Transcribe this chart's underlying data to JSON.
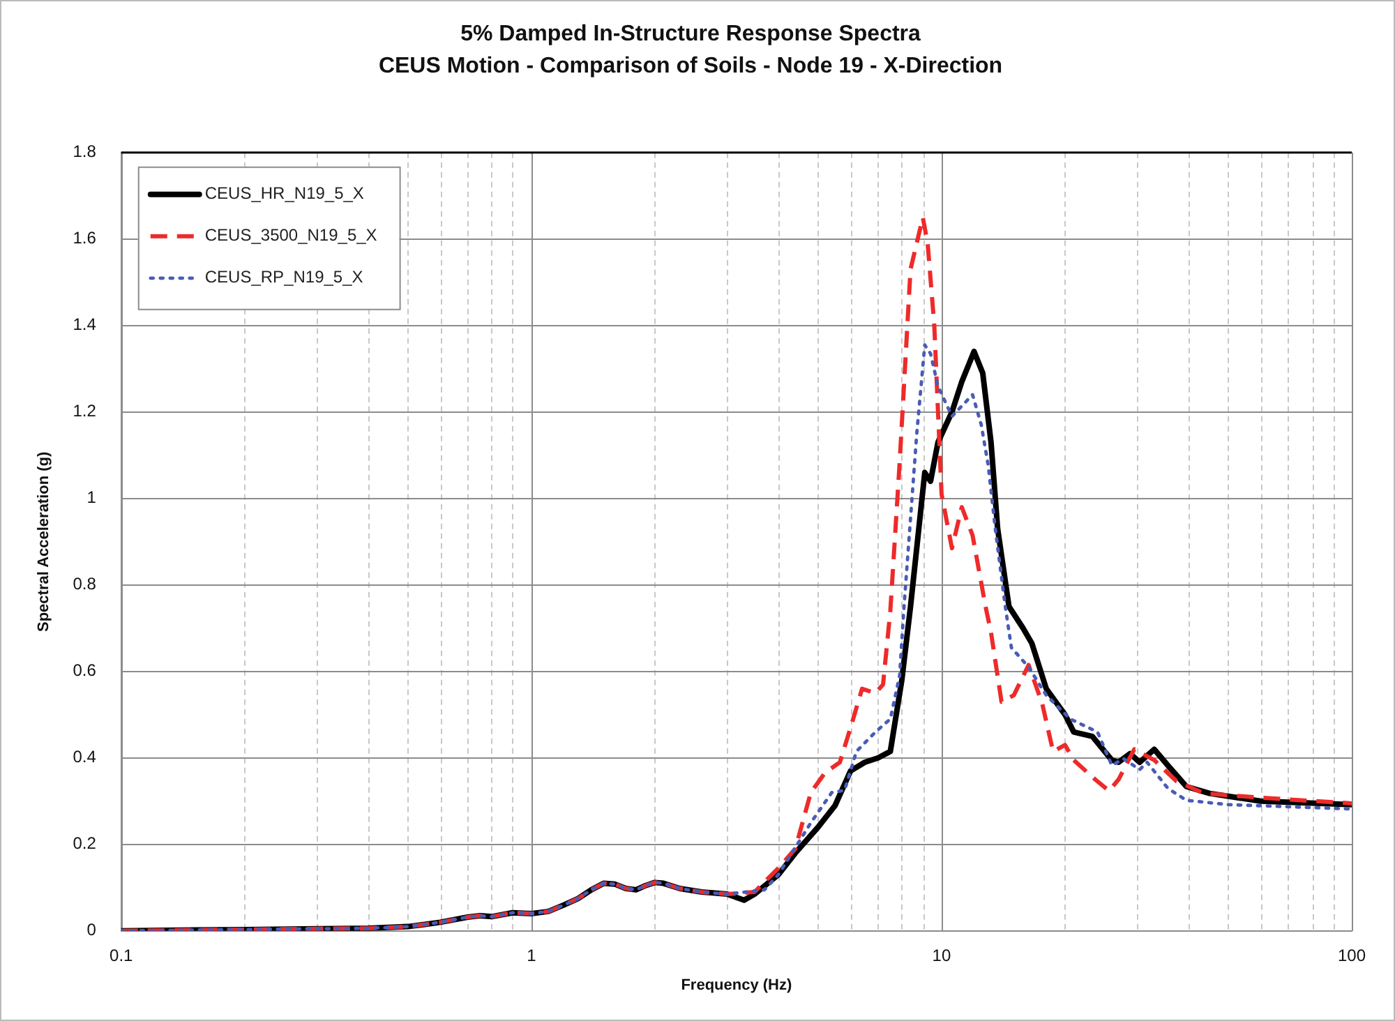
{
  "chart_data": {
    "type": "line",
    "title": "5% Damped In-Structure Response Spectra",
    "subtitle": "CEUS Motion - Comparison of Soils - Node 19 - X-Direction",
    "xlabel": "Frequency (Hz)",
    "ylabel": "Spectral Acceleration (g)",
    "log": "x",
    "grid": true,
    "legend": "top left",
    "marker": "none",
    "xlim": [
      0.1,
      100
    ],
    "xticks": [
      0.1,
      {
        "value": 0.2,
        "label": null
      },
      {
        "value": 0.3,
        "label": null
      },
      {
        "value": 0.4,
        "label": null
      },
      {
        "value": 0.5,
        "label": null
      },
      {
        "value": 0.6,
        "label": null
      },
      {
        "value": 0.7,
        "label": null
      },
      {
        "value": 0.8,
        "label": null
      },
      {
        "value": 0.9,
        "label": null
      },
      1,
      {
        "value": 2,
        "label": null
      },
      {
        "value": 3,
        "label": null
      },
      {
        "value": 4,
        "label": null
      },
      {
        "value": 5,
        "label": null
      },
      {
        "value": 6,
        "label": null
      },
      {
        "value": 7,
        "label": null
      },
      {
        "value": 8,
        "label": null
      },
      {
        "value": 9,
        "label": null
      },
      10,
      {
        "value": 20,
        "label": null
      },
      {
        "value": 30,
        "label": null
      },
      {
        "value": 40,
        "label": null
      },
      {
        "value": 50,
        "label": null
      },
      {
        "value": 60,
        "label": null
      },
      {
        "value": 70,
        "label": null
      },
      {
        "value": 80,
        "label": null
      },
      {
        "value": 90,
        "label": null
      },
      100
    ],
    "ylim": [
      0,
      1.8
    ],
    "yticks": [
      0,
      0.2,
      0.4,
      0.6,
      0.8,
      1,
      1.2,
      1.4,
      1.6,
      1.8
    ],
    "series": [
      {
        "name": "CEUS_HR_N19_5_X",
        "color": "#000000",
        "line_style": "solid",
        "x": [
          0.1,
          0.15,
          0.2,
          0.3,
          0.4,
          0.5,
          0.55,
          0.6,
          0.7,
          0.75,
          0.8,
          0.9,
          1,
          1.1,
          1.2,
          1.3,
          1.4,
          1.5,
          1.6,
          1.7,
          1.8,
          1.9,
          2,
          2.1,
          2.3,
          2.6,
          3,
          3.3,
          3.5,
          4,
          4.4,
          5,
          5.5,
          6,
          6.5,
          7,
          7.5,
          8,
          8.4,
          9.1,
          9.4,
          9.8,
          10.6,
          11.2,
          12,
          12.6,
          13.2,
          13.7,
          14.6,
          15.8,
          16.6,
          18,
          20,
          21,
          23.3,
          26,
          27,
          28.8,
          30.4,
          33,
          35.6,
          39.5,
          45,
          60,
          100
        ],
        "values": [
          0,
          0.002,
          0.003,
          0.005,
          0.006,
          0.01,
          0.015,
          0.02,
          0.032,
          0.035,
          0.033,
          0.042,
          0.04,
          0.045,
          0.06,
          0.075,
          0.095,
          0.11,
          0.108,
          0.098,
          0.095,
          0.105,
          0.112,
          0.11,
          0.098,
          0.09,
          0.085,
          0.071,
          0.085,
          0.13,
          0.18,
          0.24,
          0.29,
          0.37,
          0.39,
          0.4,
          0.415,
          0.58,
          0.75,
          1.06,
          1.04,
          1.13,
          1.2,
          1.27,
          1.34,
          1.29,
          1.13,
          0.93,
          0.75,
          0.7,
          0.665,
          0.56,
          0.5,
          0.46,
          0.45,
          0.395,
          0.39,
          0.41,
          0.39,
          0.42,
          0.383,
          0.334,
          0.318,
          0.3,
          0.292
        ]
      },
      {
        "name": "CEUS_3500_N19_5_X",
        "color": "#ee2a2a",
        "line_style": "dashed",
        "x": [
          0.1,
          0.15,
          0.2,
          0.3,
          0.4,
          0.5,
          0.55,
          0.6,
          0.7,
          0.75,
          0.8,
          0.9,
          1,
          1.1,
          1.2,
          1.3,
          1.4,
          1.5,
          1.6,
          1.7,
          1.8,
          1.9,
          2,
          2.1,
          2.3,
          2.6,
          3,
          3.5,
          4,
          4.4,
          4.8,
          5.2,
          5.65,
          6,
          6.4,
          6.9,
          7.2,
          7.5,
          7.9,
          8.4,
          9,
          9.25,
          9.6,
          10,
          10.6,
          11.2,
          11.9,
          12.8,
          13.2,
          14,
          15,
          16.3,
          17.6,
          18.7,
          20,
          21,
          23.7,
          25.6,
          27,
          29.5,
          33,
          37.4,
          43.7,
          60,
          100
        ],
        "values": [
          0,
          0.002,
          0.003,
          0.005,
          0.006,
          0.01,
          0.015,
          0.02,
          0.032,
          0.035,
          0.033,
          0.042,
          0.04,
          0.045,
          0.06,
          0.075,
          0.095,
          0.11,
          0.108,
          0.098,
          0.095,
          0.105,
          0.112,
          0.11,
          0.098,
          0.09,
          0.085,
          0.09,
          0.145,
          0.19,
          0.32,
          0.366,
          0.39,
          0.47,
          0.56,
          0.55,
          0.57,
          0.74,
          1.08,
          1.53,
          1.65,
          1.59,
          1.4,
          1.01,
          0.885,
          0.98,
          0.915,
          0.75,
          0.69,
          0.53,
          0.545,
          0.615,
          0.525,
          0.415,
          0.43,
          0.395,
          0.35,
          0.324,
          0.35,
          0.42,
          0.395,
          0.346,
          0.318,
          0.308,
          0.295
        ]
      },
      {
        "name": "CEUS_RP_N19_5_X",
        "color": "#4a5cb4",
        "line_style": "dotted",
        "x": [
          0.1,
          0.15,
          0.2,
          0.3,
          0.4,
          0.5,
          0.55,
          0.6,
          0.7,
          0.75,
          0.8,
          0.9,
          1,
          1.1,
          1.2,
          1.3,
          1.4,
          1.5,
          1.6,
          1.7,
          1.8,
          1.9,
          2,
          2.1,
          2.3,
          2.6,
          3,
          3.7,
          4,
          4.8,
          5.4,
          5.8,
          6.2,
          6.9,
          7.5,
          7.9,
          8.1,
          8.7,
          9.1,
          9.4,
          9.8,
          10.6,
          11.9,
          12.5,
          13,
          13.5,
          14.3,
          14.8,
          16.3,
          18,
          20.6,
          24,
          26,
          27.8,
          30.4,
          31.7,
          35.6,
          39.5,
          50,
          100
        ],
        "values": [
          0,
          0.002,
          0.003,
          0.005,
          0.006,
          0.01,
          0.015,
          0.02,
          0.032,
          0.035,
          0.033,
          0.042,
          0.04,
          0.045,
          0.06,
          0.075,
          0.095,
          0.11,
          0.108,
          0.098,
          0.095,
          0.105,
          0.112,
          0.11,
          0.098,
          0.09,
          0.085,
          0.095,
          0.13,
          0.25,
          0.32,
          0.325,
          0.415,
          0.46,
          0.49,
          0.59,
          0.75,
          1.15,
          1.355,
          1.335,
          1.26,
          1.19,
          1.24,
          1.17,
          1.075,
          0.935,
          0.75,
          0.655,
          0.61,
          0.545,
          0.49,
          0.46,
          0.383,
          0.398,
          0.373,
          0.39,
          0.33,
          0.302,
          0.292,
          0.282
        ]
      }
    ]
  }
}
